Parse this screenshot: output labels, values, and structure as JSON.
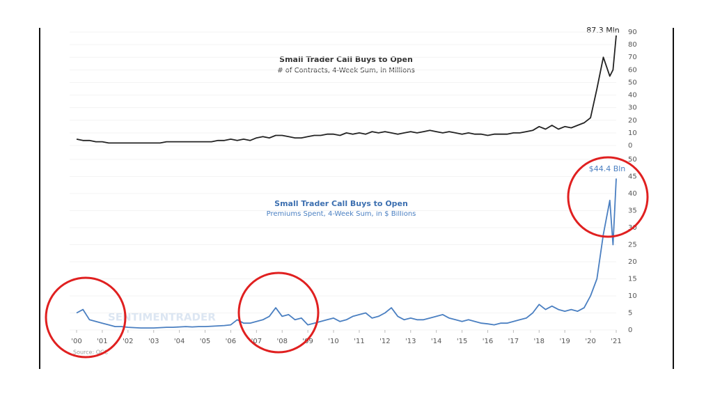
{
  "chart_data": [
    {
      "type": "line",
      "title": "Small Trader Call Buys to Open",
      "subtitle": "# of Contracts, 4-Week Sum, in Millions",
      "annotation": "87.3 Mln",
      "xlim": [
        2000,
        2021
      ],
      "ylim": [
        0,
        90
      ],
      "yticks": [
        0,
        10,
        20,
        30,
        40,
        50,
        60,
        70,
        80,
        90
      ],
      "grid": true,
      "x": [
        2000,
        2000.25,
        2000.5,
        2000.75,
        2001,
        2001.25,
        2001.5,
        2001.75,
        2002,
        2002.25,
        2002.5,
        2002.75,
        2003,
        2003.25,
        2003.5,
        2003.75,
        2004,
        2004.25,
        2004.5,
        2004.75,
        2005,
        2005.25,
        2005.5,
        2005.75,
        2006,
        2006.25,
        2006.5,
        2006.75,
        2007,
        2007.25,
        2007.5,
        2007.75,
        2008,
        2008.25,
        2008.5,
        2008.75,
        2009,
        2009.25,
        2009.5,
        2009.75,
        2010,
        2010.25,
        2010.5,
        2010.75,
        2011,
        2011.25,
        2011.5,
        2011.75,
        2012,
        2012.25,
        2012.5,
        2012.75,
        2013,
        2013.25,
        2013.5,
        2013.75,
        2014,
        2014.25,
        2014.5,
        2014.75,
        2015,
        2015.25,
        2015.5,
        2015.75,
        2016,
        2016.25,
        2016.5,
        2016.75,
        2017,
        2017.25,
        2017.5,
        2017.75,
        2018,
        2018.25,
        2018.5,
        2018.75,
        2019,
        2019.25,
        2019.5,
        2019.75,
        2020,
        2020.25,
        2020.5,
        2020.75,
        2020.875,
        2021
      ],
      "series": [
        {
          "name": "Contracts",
          "color": "#222222",
          "values": [
            5,
            4,
            4,
            3,
            3,
            2,
            2,
            2,
            2,
            2,
            2,
            2,
            2,
            2,
            3,
            3,
            3,
            3,
            3,
            3,
            3,
            3,
            4,
            4,
            5,
            4,
            5,
            4,
            6,
            7,
            6,
            8,
            8,
            7,
            6,
            6,
            7,
            8,
            8,
            9,
            9,
            8,
            10,
            9,
            10,
            9,
            11,
            10,
            11,
            10,
            9,
            10,
            11,
            10,
            11,
            12,
            11,
            10,
            11,
            10,
            9,
            10,
            9,
            9,
            8,
            9,
            9,
            9,
            10,
            10,
            11,
            12,
            15,
            13,
            16,
            13,
            15,
            14,
            16,
            18,
            22,
            45,
            70,
            55,
            60,
            87.3
          ]
        }
      ]
    },
    {
      "type": "line",
      "title": "Small Trader Call Buys to Open",
      "subtitle": "Premiums Spent, 4-Week Sum, in $ Billions",
      "annotation": "$44.4 Bln",
      "watermark": "SENTIMENTRADER",
      "source": "Source: OCC",
      "xlim": [
        2000,
        2021
      ],
      "ylim": [
        0,
        50
      ],
      "yticks": [
        0,
        5,
        10,
        15,
        20,
        25,
        30,
        35,
        40,
        45,
        50
      ],
      "grid": true,
      "xticks": [
        {
          "value": 2000,
          "label": "'00"
        },
        {
          "value": 2001,
          "label": "'01"
        },
        {
          "value": 2002,
          "label": "'02"
        },
        {
          "value": 2003,
          "label": "'03"
        },
        {
          "value": 2004,
          "label": "'04"
        },
        {
          "value": 2005,
          "label": "'05"
        },
        {
          "value": 2006,
          "label": "'06"
        },
        {
          "value": 2007,
          "label": "'07"
        },
        {
          "value": 2008,
          "label": "'08"
        },
        {
          "value": 2009,
          "label": "'09"
        },
        {
          "value": 2010,
          "label": "'10"
        },
        {
          "value": 2011,
          "label": "'11"
        },
        {
          "value": 2012,
          "label": "'12"
        },
        {
          "value": 2013,
          "label": "'13"
        },
        {
          "value": 2014,
          "label": "'14"
        },
        {
          "value": 2015,
          "label": "'15"
        },
        {
          "value": 2016,
          "label": "'16"
        },
        {
          "value": 2017,
          "label": "'17"
        },
        {
          "value": 2018,
          "label": "'18"
        },
        {
          "value": 2019,
          "label": "'19"
        },
        {
          "value": 2020,
          "label": "'20"
        },
        {
          "value": 2021,
          "label": "'21"
        }
      ],
      "x": [
        2000,
        2000.25,
        2000.5,
        2000.75,
        2001,
        2001.25,
        2001.5,
        2001.75,
        2002,
        2002.25,
        2002.5,
        2002.75,
        2003,
        2003.25,
        2003.5,
        2003.75,
        2004,
        2004.25,
        2004.5,
        2004.75,
        2005,
        2005.25,
        2005.5,
        2005.75,
        2006,
        2006.25,
        2006.5,
        2006.75,
        2007,
        2007.25,
        2007.5,
        2007.75,
        2008,
        2008.25,
        2008.5,
        2008.75,
        2009,
        2009.25,
        2009.5,
        2009.75,
        2010,
        2010.25,
        2010.5,
        2010.75,
        2011,
        2011.25,
        2011.5,
        2011.75,
        2012,
        2012.25,
        2012.5,
        2012.75,
        2013,
        2013.25,
        2013.5,
        2013.75,
        2014,
        2014.25,
        2014.5,
        2014.75,
        2015,
        2015.25,
        2015.5,
        2015.75,
        2016,
        2016.25,
        2016.5,
        2016.75,
        2017,
        2017.25,
        2017.5,
        2017.75,
        2018,
        2018.25,
        2018.5,
        2018.75,
        2019,
        2019.25,
        2019.5,
        2019.75,
        2020,
        2020.25,
        2020.5,
        2020.75,
        2020.875,
        2021
      ],
      "series": [
        {
          "name": "Premiums",
          "color": "#4a7fc1",
          "values": [
            5,
            6,
            3,
            2.5,
            2,
            1.5,
            1,
            1,
            0.8,
            0.7,
            0.6,
            0.6,
            0.6,
            0.7,
            0.8,
            0.8,
            0.9,
            1,
            0.9,
            1,
            1,
            1.1,
            1.2,
            1.3,
            1.5,
            3,
            2,
            2,
            2.5,
            3,
            4,
            6.5,
            4,
            4.5,
            3,
            3.5,
            1.5,
            2,
            2.5,
            3,
            3.5,
            2.5,
            3,
            4,
            4.5,
            5,
            3.5,
            4,
            5,
            6.5,
            4,
            3,
            3.5,
            3,
            3,
            3.5,
            4,
            4.5,
            3.5,
            3,
            2.5,
            3,
            2.5,
            2,
            1.8,
            1.5,
            2,
            2,
            2.5,
            3,
            3.5,
            5,
            7.5,
            6,
            7,
            6,
            5.5,
            6,
            5.5,
            6.5,
            10,
            15,
            28,
            38,
            25,
            44.4
          ]
        }
      ]
    }
  ]
}
